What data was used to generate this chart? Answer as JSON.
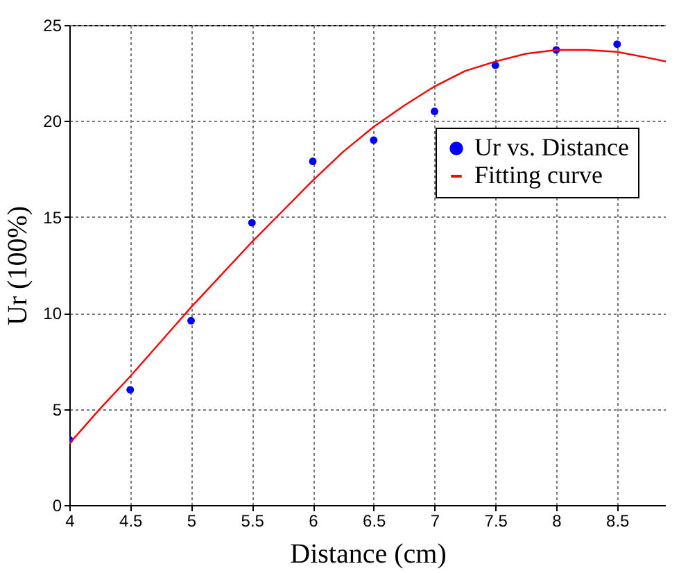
{
  "chart_data": {
    "type": "scatter",
    "xlabel": "Distance (cm)",
    "ylabel": "Ur (100%)",
    "xlim": [
      4,
      8.9
    ],
    "xticks": [
      4,
      4.5,
      5,
      5.5,
      6,
      6.5,
      7,
      7.5,
      8,
      8.5
    ],
    "ylim": [
      0,
      25
    ],
    "yticks": [
      0,
      5,
      10,
      15,
      20,
      25
    ],
    "grid": true,
    "legend": "top right",
    "series": [
      {
        "name": "Ur vs. Distance",
        "marker": "circle",
        "color": "#0000ff",
        "x": [
          4,
          4.5,
          5,
          5.5,
          6,
          6.5,
          7,
          7.5,
          8,
          8.5
        ],
        "values": [
          3.4,
          6.0,
          9.6,
          14.7,
          17.9,
          19.0,
          20.5,
          22.9,
          23.7,
          24.0
        ]
      },
      {
        "name": "Fitting curve",
        "type": "line",
        "color": "#ff0000",
        "x": [
          4,
          4.25,
          4.5,
          4.75,
          5,
          5.25,
          5.5,
          5.75,
          6,
          6.25,
          6.5,
          6.75,
          7,
          7.25,
          7.5,
          7.75,
          8,
          8.25,
          8.5,
          8.75,
          8.9
        ],
        "values": [
          3.2,
          5.0,
          6.7,
          8.5,
          10.3,
          12.0,
          13.7,
          15.3,
          16.9,
          18.4,
          19.7,
          20.8,
          21.8,
          22.6,
          23.1,
          23.5,
          23.7,
          23.7,
          23.6,
          23.3,
          23.1
        ]
      }
    ]
  }
}
